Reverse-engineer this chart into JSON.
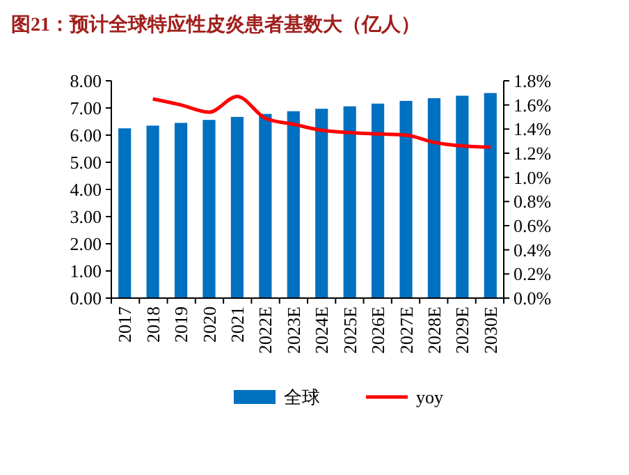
{
  "chart_data": {
    "type": "bar",
    "title": "图21：预计全球特应性皮炎患者基数大（亿人）",
    "categories": [
      "2017",
      "2018",
      "2019",
      "2020",
      "2021",
      "2022E",
      "2023E",
      "2024E",
      "2025E",
      "2026E",
      "2027E",
      "2028E",
      "2029E",
      "2030E"
    ],
    "series": [
      {
        "name": "全球",
        "color": "#0070c0",
        "values": [
          6.25,
          6.35,
          6.45,
          6.56,
          6.67,
          6.78,
          6.88,
          6.97,
          7.06,
          7.16,
          7.26,
          7.36,
          7.45,
          7.55
        ]
      },
      {
        "name": "yoy",
        "type": "line",
        "axis": "y2",
        "color": "#ff0000",
        "values": [
          null,
          1.65,
          1.6,
          1.54,
          1.67,
          1.49,
          1.44,
          1.39,
          1.37,
          1.36,
          1.35,
          1.29,
          1.26,
          1.25
        ]
      }
    ],
    "ylim": [
      0,
      8
    ],
    "yticks": [
      {
        "value": 0,
        "label": "0.00"
      },
      {
        "value": 1,
        "label": "1.00"
      },
      {
        "value": 2,
        "label": "2.00"
      },
      {
        "value": 3,
        "label": "3.00"
      },
      {
        "value": 4,
        "label": "4.00"
      },
      {
        "value": 5,
        "label": "5.00"
      },
      {
        "value": 6,
        "label": "6.00"
      },
      {
        "value": 7,
        "label": "7.00"
      },
      {
        "value": 8,
        "label": "8.00"
      }
    ],
    "y2lim": [
      0,
      1.8
    ],
    "y2ticks": [
      {
        "value": 0,
        "label": "0.0%"
      },
      {
        "value": 0.2,
        "label": "0.2%"
      },
      {
        "value": 0.4,
        "label": "0.4%"
      },
      {
        "value": 0.6,
        "label": "0.6%"
      },
      {
        "value": 0.8,
        "label": "0.8%"
      },
      {
        "value": 1,
        "label": "1.0%"
      },
      {
        "value": 1.2,
        "label": "1.2%"
      },
      {
        "value": 1.4,
        "label": "1.4%"
      },
      {
        "value": 1.6,
        "label": "1.6%"
      },
      {
        "value": 1.8,
        "label": "1.8%"
      }
    ],
    "legend": "bottom",
    "grid": false
  }
}
